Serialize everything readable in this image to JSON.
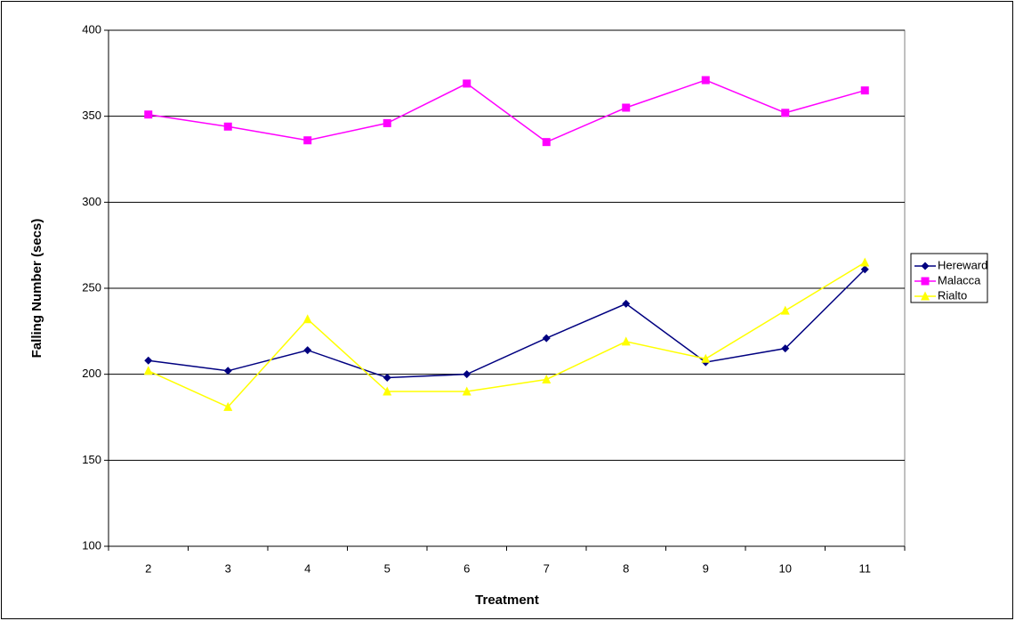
{
  "chart_data": {
    "type": "line",
    "x_label": "Treatment",
    "y_label": "Falling Number (secs)",
    "categories": [
      "2",
      "3",
      "4",
      "5",
      "6",
      "7",
      "8",
      "9",
      "10",
      "11"
    ],
    "series": [
      {
        "name": "Hereward",
        "color": "#000080",
        "marker": "diamond",
        "values": [
          208,
          202,
          214,
          198,
          200,
          221,
          241,
          207,
          215,
          261
        ]
      },
      {
        "name": "Malacca",
        "color": "#ff00ff",
        "marker": "square",
        "values": [
          351,
          344,
          336,
          346,
          369,
          335,
          355,
          371,
          352,
          365
        ]
      },
      {
        "name": "Rialto",
        "color": "#ffff00",
        "marker": "triangle",
        "values": [
          202,
          181,
          232,
          190,
          190,
          197,
          219,
          209,
          237,
          265
        ]
      }
    ],
    "ylim": [
      100,
      400
    ],
    "yticks": [
      100,
      150,
      200,
      250,
      300,
      350,
      400
    ],
    "grid": true,
    "legend": "right"
  }
}
